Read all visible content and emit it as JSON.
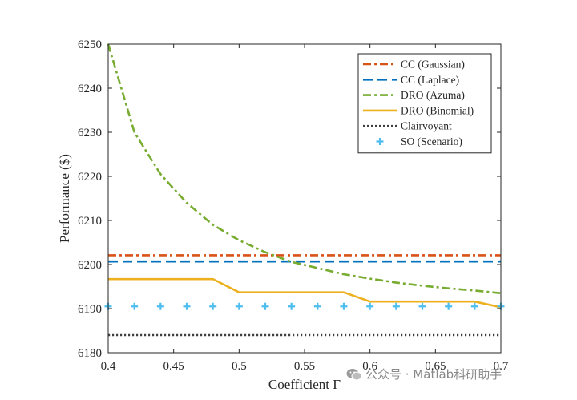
{
  "chart_data": {
    "type": "line",
    "xlabel": "Coefficient Γ",
    "ylabel": "Performance ($)",
    "xlim": [
      0.4,
      0.7
    ],
    "ylim": [
      6180,
      6250
    ],
    "xticks": [
      "0.4",
      "0.45",
      "0.5",
      "0.55",
      "0.6",
      "0.65",
      "0.7"
    ],
    "yticks": [
      "6180",
      "6190",
      "6200",
      "6210",
      "6220",
      "6230",
      "6240",
      "6250"
    ],
    "grid": false,
    "legend_position": "top-right",
    "series": [
      {
        "name": "CC (Gaussian)",
        "color": "#D95319",
        "style": "dashdot",
        "x": [
          0.4,
          0.7
        ],
        "y": [
          6202.1,
          6202.1
        ]
      },
      {
        "name": "CC (Laplace)",
        "color": "#0072BD",
        "style": "dashed",
        "x": [
          0.4,
          0.7
        ],
        "y": [
          6200.7,
          6200.7
        ]
      },
      {
        "name": "DRO (Azuma)",
        "color": "#77AC30",
        "style": "dashdot",
        "x": [
          0.4,
          0.42,
          0.44,
          0.46,
          0.48,
          0.5,
          0.52,
          0.54,
          0.56,
          0.58,
          0.6,
          0.62,
          0.64,
          0.66,
          0.68,
          0.7
        ],
        "y": [
          6250,
          6230,
          6220.5,
          6214,
          6209,
          6205.5,
          6202.8,
          6200.6,
          6199.2,
          6197.8,
          6196.8,
          6195.9,
          6195.2,
          6194.6,
          6194.1,
          6193.5
        ]
      },
      {
        "name": "DRO (Binomial)",
        "color": "#EDB120",
        "style": "solid",
        "x": [
          0.4,
          0.48,
          0.5,
          0.58,
          0.6,
          0.68,
          0.7
        ],
        "y": [
          6196.7,
          6196.7,
          6193.7,
          6193.7,
          6191.6,
          6191.6,
          6190.3
        ]
      },
      {
        "name": "Clairvoyant",
        "color": "#404040",
        "style": "dotted",
        "x": [
          0.4,
          0.7
        ],
        "y": [
          6184,
          6184
        ]
      },
      {
        "name": "SO (Scenario)",
        "color": "#4DBEEE",
        "style": "marker-plus",
        "x": [
          0.4,
          0.42,
          0.44,
          0.46,
          0.48,
          0.5,
          0.52,
          0.54,
          0.56,
          0.58,
          0.6,
          0.62,
          0.64,
          0.66,
          0.68,
          0.7
        ],
        "y": [
          6190.5,
          6190.5,
          6190.5,
          6190.5,
          6190.5,
          6190.5,
          6190.5,
          6190.5,
          6190.5,
          6190.5,
          6190.5,
          6190.5,
          6190.5,
          6190.5,
          6190.5,
          6190.5
        ]
      }
    ]
  },
  "watermark": {
    "text": "公众号 · Matlab科研助手"
  }
}
